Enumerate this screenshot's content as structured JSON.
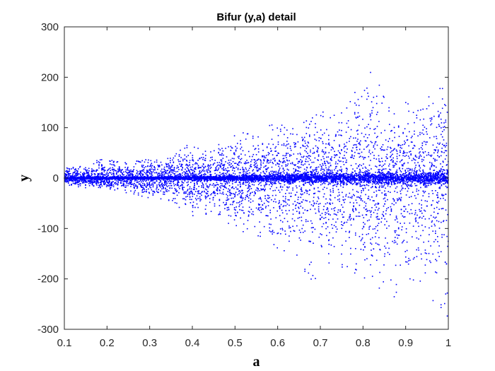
{
  "chart_data": {
    "type": "scatter",
    "title": "Bifur (y,a) detail",
    "xlabel": "a",
    "ylabel": "y",
    "xlim": [
      0.1,
      1.0
    ],
    "ylim": [
      -300,
      300
    ],
    "x_ticks": [
      0.1,
      0.2,
      0.3,
      0.4,
      0.5,
      0.6,
      0.7,
      0.8,
      0.9,
      1.0
    ],
    "x_tick_labels": [
      "0.1",
      "0.2",
      "0.3",
      "0.4",
      "0.5",
      "0.6",
      "0.7",
      "0.8",
      "0.9",
      "1"
    ],
    "y_ticks": [
      -300,
      -200,
      -100,
      0,
      100,
      200,
      300
    ],
    "y_tick_labels": [
      "-300",
      "-200",
      "-100",
      "0",
      "100",
      "200",
      "300"
    ],
    "grid": false,
    "marker_color": "#0000ff",
    "envelope": [
      {
        "a": 0.1,
        "ymin": -15,
        "ymax": 20
      },
      {
        "a": 0.15,
        "ymin": -20,
        "ymax": 25
      },
      {
        "a": 0.19,
        "ymin": -20,
        "ymax": 40
      },
      {
        "a": 0.25,
        "ymin": -30,
        "ymax": 30
      },
      {
        "a": 0.3,
        "ymin": -40,
        "ymax": 40
      },
      {
        "a": 0.35,
        "ymin": -45,
        "ymax": 40
      },
      {
        "a": 0.4,
        "ymin": -80,
        "ymax": 75
      },
      {
        "a": 0.45,
        "ymin": -70,
        "ymax": 60
      },
      {
        "a": 0.5,
        "ymin": -100,
        "ymax": 100
      },
      {
        "a": 0.55,
        "ymin": -120,
        "ymax": 95
      },
      {
        "a": 0.6,
        "ymin": -140,
        "ymax": 110
      },
      {
        "a": 0.65,
        "ymin": -160,
        "ymax": 110
      },
      {
        "a": 0.68,
        "ymin": -215,
        "ymax": 120
      },
      {
        "a": 0.7,
        "ymin": -180,
        "ymax": 130
      },
      {
        "a": 0.75,
        "ymin": -180,
        "ymax": 160
      },
      {
        "a": 0.78,
        "ymin": -200,
        "ymax": 175
      },
      {
        "a": 0.81,
        "ymin": -200,
        "ymax": 265
      },
      {
        "a": 0.85,
        "ymin": -230,
        "ymax": 175
      },
      {
        "a": 0.87,
        "ymin": -255,
        "ymax": 150
      },
      {
        "a": 0.9,
        "ymin": -210,
        "ymax": 150
      },
      {
        "a": 0.93,
        "ymin": -200,
        "ymax": 140
      },
      {
        "a": 0.96,
        "ymin": -250,
        "ymax": 190
      },
      {
        "a": 0.99,
        "ymin": -260,
        "ymax": 180
      },
      {
        "a": 1.0,
        "ymin": -300,
        "ymax": 125
      }
    ]
  }
}
